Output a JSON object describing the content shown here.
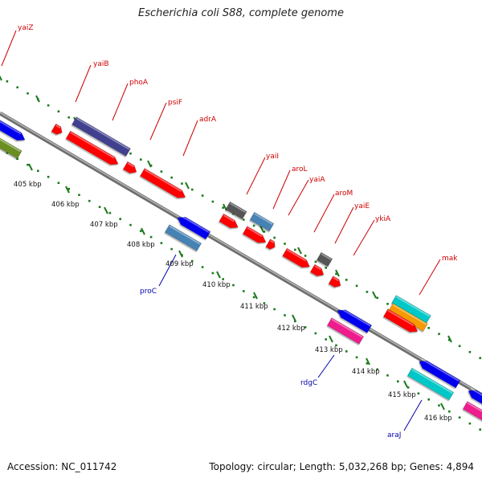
{
  "title": "Escherichia coli S88, complete genome",
  "footer": {
    "accession": "Accession: NC_011742",
    "topology": "Topology: circular; Length: 5,032,268 bp; Genes: 4,894"
  },
  "colors": {
    "backbone": "#8a8a8a",
    "tick_outer": "#1e7a1e",
    "tick_inner": "#1e7a1e",
    "label_forward": "#cc0000",
    "label_reverse": "#0000aa",
    "red": "#ff0000",
    "blue": "#0000ee",
    "navy": "#3f3f8f",
    "steel": "#4682b4",
    "gray": "#555555",
    "cyan": "#00c8c8",
    "orange": "#f59b00",
    "magenta": "#ee1a8c",
    "olive": "#6b8e23"
  },
  "kbp_labels": [
    "405 kbp",
    "406 kbp",
    "407 kbp",
    "408 kbp",
    "409 kbp",
    "410 kbp",
    "411 kbp",
    "412 kbp",
    "413 kbp",
    "414 kbp",
    "415 kbp",
    "416 kbp"
  ],
  "gene_labels_forward": [
    "yaiZ",
    "yaiB",
    "phoA",
    "psiF",
    "adrA",
    "yaiI",
    "aroL",
    "yaiA",
    "aroM",
    "yaiE",
    "ykiA",
    "mak"
  ],
  "gene_labels_reverse": [
    "proC",
    "rdgC",
    "araJ"
  ]
}
